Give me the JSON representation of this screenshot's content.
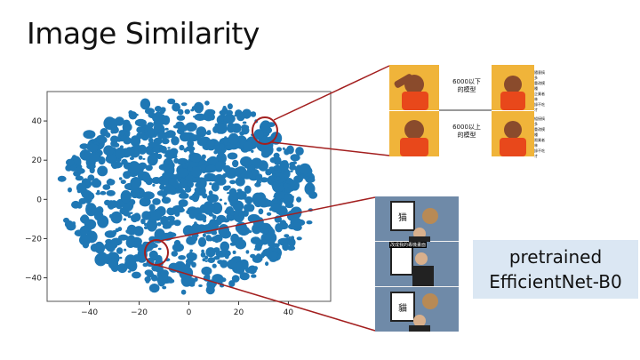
{
  "slide": {
    "title": "Image Similarity",
    "model_label_line1": "pretrained",
    "model_label_line2": "EfficientNet-B0"
  },
  "chart_data": {
    "type": "scatter",
    "title": "",
    "xlabel": "",
    "ylabel": "",
    "xlim": [
      -57,
      57
    ],
    "ylim": [
      -52,
      55
    ],
    "x_ticks": [
      -40,
      -20,
      0,
      20,
      40
    ],
    "y_ticks": [
      -40,
      -20,
      0,
      20,
      40
    ],
    "x_tick_labels": [
      "−40",
      "−20",
      "0",
      "20",
      "40"
    ],
    "y_tick_labels": [
      "−40",
      "−20",
      "0",
      "20",
      "40"
    ],
    "point_color": "#1f77b4",
    "grid": false,
    "highlighted_regions": [
      {
        "center_x": 31,
        "center_y": 36
      },
      {
        "center_x": -13,
        "center_y": -30
      }
    ]
  },
  "meme_top": {
    "caption1_line1": "6000以下",
    "caption1_line2": "的模型",
    "caption2_line1": "6000以上",
    "caption2_line2": "的模型",
    "right1": [
      "隨意搞多",
      "重改模種",
      "企業者林",
      "錄不吃才"
    ],
    "right2": [
      "組接搞多",
      "重改模種",
      "限業者林",
      "錄不吃才"
    ]
  },
  "meme_bottom": {
    "panel1_char": "猫",
    "panel2_caption": "改成我的專機畫面",
    "panel3_char": "貓"
  },
  "colors": {
    "accent_red": "#a31f1f",
    "label_bg": "#dbe7f3"
  }
}
